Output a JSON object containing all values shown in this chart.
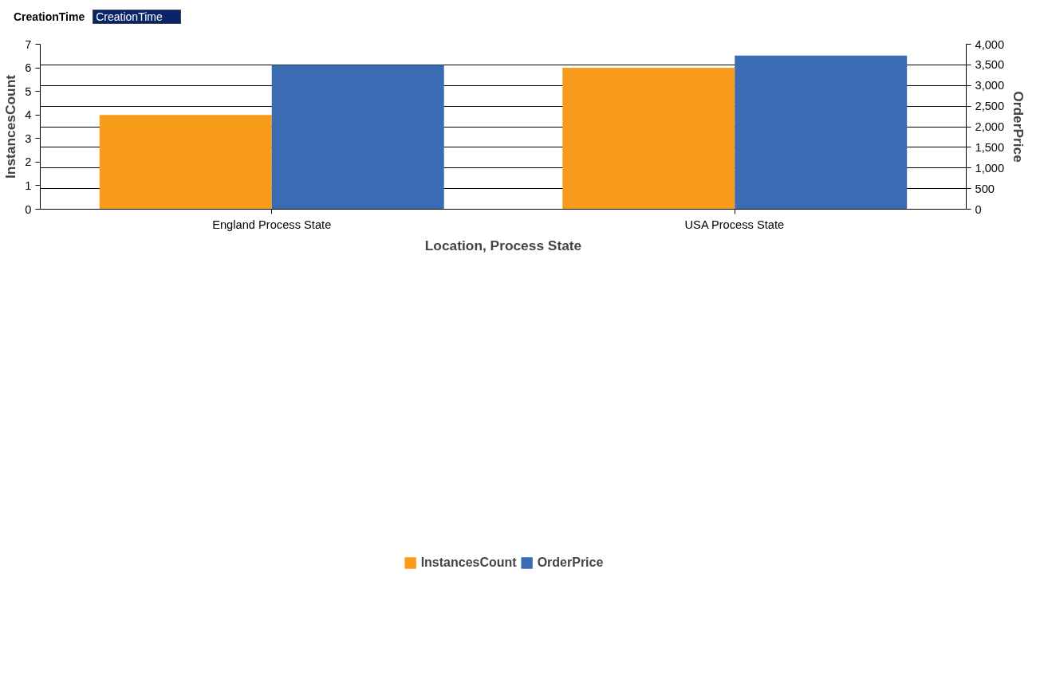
{
  "chart_data": {
    "type": "bar",
    "xlabel": "Location, Process State",
    "ylabel": "InstancesCount",
    "y2label": "OrderPrice",
    "categories": [
      "England Process State",
      "USA Process State"
    ],
    "series": [
      {
        "name": "InstancesCount",
        "color": "#fa9c1b",
        "values": [
          4,
          6
        ]
      },
      {
        "name": "OrderPrice",
        "color": "#3a6bb3",
        "values": [
          3500,
          3725
        ],
        "axis": "y2"
      }
    ],
    "ylim": [
      0,
      7
    ],
    "yticks": [
      0,
      1,
      2,
      3,
      4,
      5,
      6,
      7
    ],
    "y2lim": [
      0,
      4000
    ],
    "y2ticks": [
      0,
      {
        "value": 500,
        "label": "500"
      },
      {
        "value": 1000,
        "label": "1,000"
      },
      {
        "value": 1500,
        "label": "1,500"
      },
      {
        "value": 2000,
        "label": "2,000"
      },
      {
        "value": 2500,
        "label": "2,500"
      },
      {
        "value": 3000,
        "label": "3,000"
      },
      {
        "value": 3500,
        "label": "3,500"
      },
      {
        "value": 4000,
        "label": "4,000"
      }
    ],
    "grid": "y",
    "legend": "bottom",
    "annotations": [
      "CreationTime",
      "CreationTime"
    ]
  }
}
